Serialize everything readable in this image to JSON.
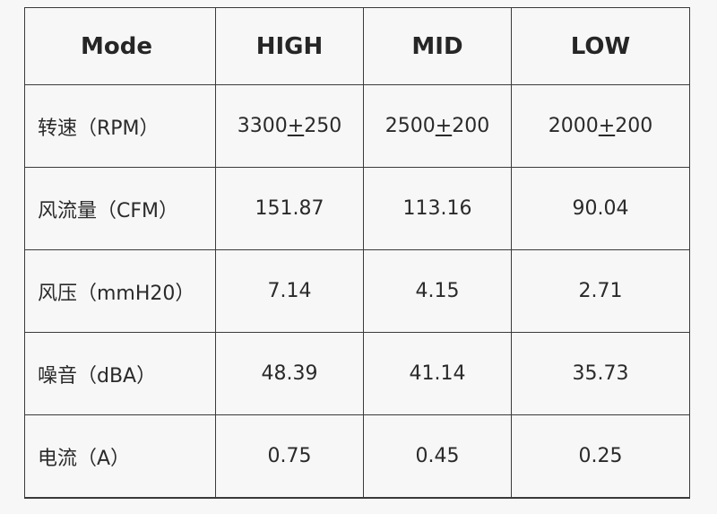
{
  "header": {
    "mode": "Mode",
    "high": "HIGH",
    "mid": "MID",
    "low": "LOW"
  },
  "rows": [
    {
      "label": "转速（RPM）",
      "high_pre": "3300",
      "high_pm": "+",
      "high_post": "250",
      "mid_pre": "2500",
      "mid_pm": "+",
      "mid_post": "200",
      "low_pre": "2000",
      "low_pm": "+",
      "low_post": "200"
    },
    {
      "label": "风流量（CFM）",
      "high": "151.87",
      "mid": "113.16",
      "low": "90.04"
    },
    {
      "label": "风压（mmH20）",
      "high": "7.14",
      "mid": "4.15",
      "low": "2.71"
    },
    {
      "label": "噪音（dBA）",
      "high": "48.39",
      "mid": "41.14",
      "low": "35.73"
    },
    {
      "label": "电流（A）",
      "high": "0.75",
      "mid": "0.45",
      "low": "0.25"
    }
  ]
}
